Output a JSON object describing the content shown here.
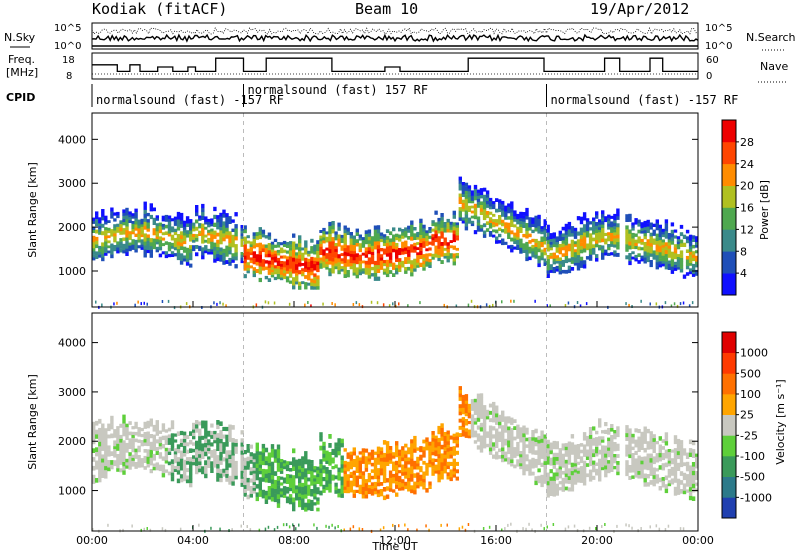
{
  "header": {
    "station": "Kodiak (fitACF)",
    "beam": "Beam 10",
    "date": "19/Apr/2012"
  },
  "panels": {
    "nsky": {
      "label": "N.Sky",
      "left_ticks": [
        "10^5",
        "10^0"
      ],
      "right_ticks": [
        "10^5",
        "10^0"
      ],
      "right_label": "N.Search"
    },
    "freq": {
      "label_line1": "Freq.",
      "label_line2": "[MHz]",
      "left_ticks": [
        "18",
        "8"
      ],
      "right_ticks": [
        "60",
        "0"
      ],
      "right_label": "Nave"
    },
    "cpid": {
      "label": "CPID",
      "segments": [
        {
          "text": "normalsound (fast) -157 RF",
          "start_h": 0
        },
        {
          "text": "normalsound (fast) 157 RF",
          "start_h": 6
        },
        {
          "text": "normalsound (fast) -157 RF",
          "start_h": 18
        }
      ]
    }
  },
  "chart_data": [
    {
      "type": "heatmap",
      "title": "",
      "xlabel": "Time UT",
      "ylabel": "Slant Range [km]",
      "xlim": [
        0,
        24
      ],
      "ylim": [
        180,
        4600
      ],
      "yticks": [
        1000,
        2000,
        3000,
        4000
      ],
      "colorbar": {
        "label": "Power [dB]",
        "ticks": [
          "4",
          "8",
          "12",
          "16",
          "20",
          "24",
          "28"
        ],
        "colors": [
          "#1010ff",
          "#1f4fb8",
          "#3a8a8a",
          "#4fa84f",
          "#b0c020",
          "#ff8c00",
          "#ff4500",
          "#ee0000"
        ]
      }
    },
    {
      "type": "heatmap",
      "title": "",
      "xlabel": "Time UT",
      "ylabel": "Slant Range [km]",
      "xlim": [
        0,
        24
      ],
      "ylim": [
        180,
        4600
      ],
      "yticks": [
        1000,
        2000,
        3000,
        4000
      ],
      "colorbar": {
        "label": "Velocity [m s⁻¹]",
        "ticks": [
          "1000",
          "500",
          "100",
          "25",
          "-25",
          "-100",
          "-500",
          "-1000"
        ],
        "colors": [
          "#2040b0",
          "#2c7a8a",
          "#3a9a5a",
          "#5ecf3a",
          "#c8c8c0",
          "#ffa500",
          "#ff7000",
          "#ff3a00",
          "#e00000"
        ]
      }
    }
  ],
  "xaxis": {
    "ticks": [
      "00:00",
      "04:00",
      "08:00",
      "12:00",
      "16:00",
      "20:00",
      "00:00"
    ],
    "label": "Time UT"
  }
}
